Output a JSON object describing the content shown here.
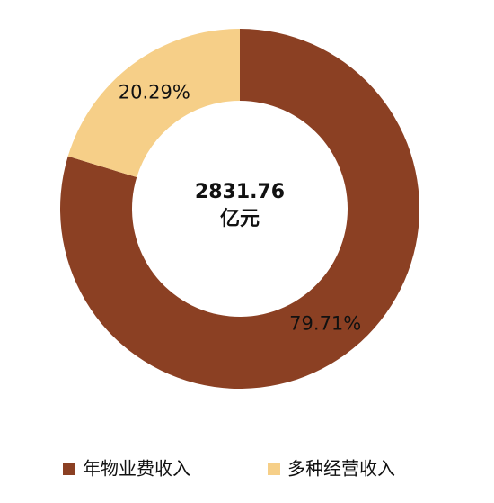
{
  "chart_data": {
    "type": "donut",
    "categories": [
      "年物业费收入",
      "多种经营收入"
    ],
    "values": [
      79.71,
      20.29
    ],
    "value_labels": [
      "79.71%",
      "20.29%"
    ],
    "colors": [
      "#8b4023",
      "#f6cf88"
    ],
    "center_value": 2831.76,
    "center_unit": "亿元",
    "legend": "bottom"
  }
}
